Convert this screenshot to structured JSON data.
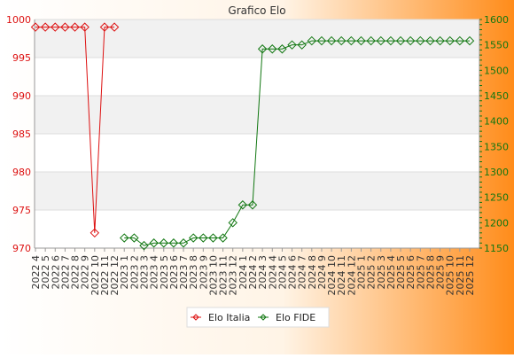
{
  "chart_data": {
    "type": "line",
    "title": "Grafico Elo",
    "categories": [
      "2022 4",
      "2022 5",
      "2022 6",
      "2022 7",
      "2022 8",
      "2022 9",
      "2022 10",
      "2022 11",
      "2022 12",
      "2023 1",
      "2023 2",
      "2023 3",
      "2023 4",
      "2023 5",
      "2023 6",
      "2023 7",
      "2023 8",
      "2023 9",
      "2023 10",
      "2023 11",
      "2023 12",
      "2024 1",
      "2024 2",
      "2024 3",
      "2024 4",
      "2024 5",
      "2024 6",
      "2024 7",
      "2024 8",
      "2024 9",
      "2024 10",
      "2024 11",
      "2024 12",
      "2025 1",
      "2025 2",
      "2025 3",
      "2025 4",
      "2025 5",
      "2025 6",
      "2025 7",
      "2025 8",
      "2025 9",
      "2025 10",
      "2025 11",
      "2025 12"
    ],
    "left_axis": {
      "ylim": [
        970,
        1000
      ],
      "ticks": [
        970,
        975,
        980,
        985,
        990,
        995,
        1000
      ]
    },
    "right_axis": {
      "ylim": [
        1150,
        1600
      ],
      "ticks": [
        1150,
        1200,
        1250,
        1300,
        1350,
        1400,
        1450,
        1500,
        1550,
        1600
      ]
    },
    "series": [
      {
        "name": "Elo Italia",
        "axis": "left",
        "color": "#dd1111",
        "values": [
          999,
          999,
          999,
          999,
          999,
          999,
          972,
          999,
          999,
          null,
          null,
          null,
          null,
          null,
          null,
          null,
          null,
          null,
          null,
          null,
          null,
          null,
          null,
          null,
          null,
          null,
          null,
          null,
          null,
          null,
          null,
          null,
          null,
          null,
          null,
          null,
          null,
          null,
          null,
          null,
          null,
          null,
          null,
          null,
          null
        ]
      },
      {
        "name": "Elo FIDE",
        "axis": "right",
        "color": "#117711",
        "values": [
          null,
          null,
          null,
          null,
          null,
          null,
          null,
          null,
          null,
          1170,
          1170,
          1155,
          1160,
          1160,
          1160,
          1160,
          1170,
          1170,
          1170,
          1170,
          1200,
          1235,
          1235,
          1542,
          1542,
          1542,
          1550,
          1550,
          1558,
          1558,
          1558,
          1558,
          1558,
          1558,
          1558,
          1558,
          1558,
          1558,
          1558,
          1558,
          1558,
          1558,
          1558,
          1558,
          1558
        ]
      }
    ],
    "legend": "bottom-center",
    "grid": "horizontal-bands",
    "colors": {
      "left_axis_text": "#dd1111",
      "right_axis_text": "#117711",
      "bg_left": "#ffffff",
      "bg_right": "#ff8c1a"
    }
  }
}
